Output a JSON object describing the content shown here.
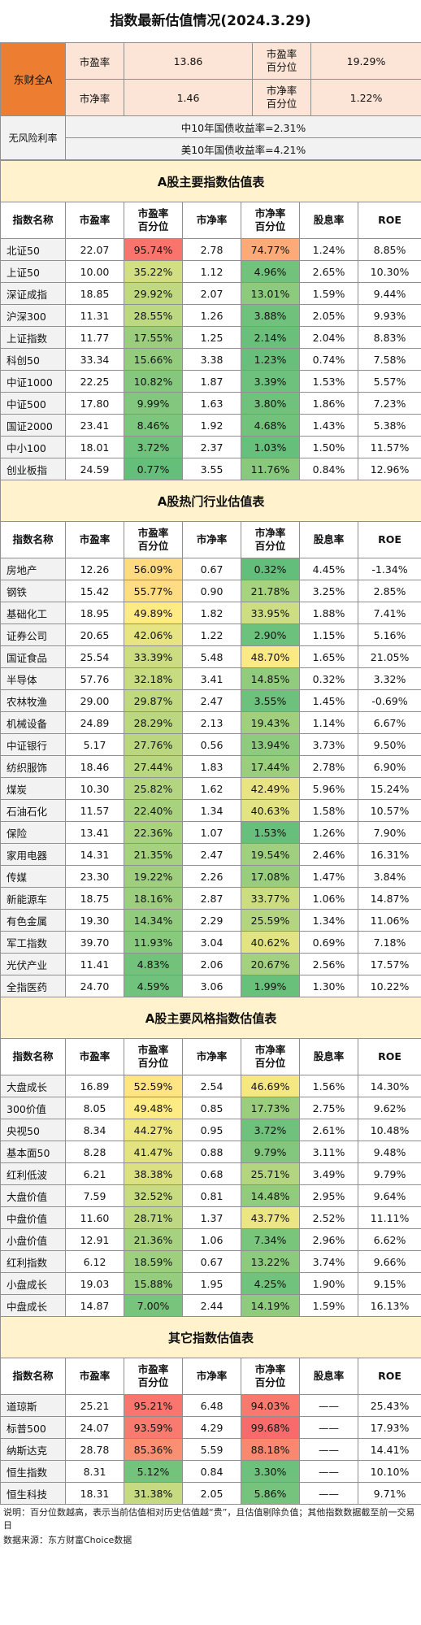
{
  "title": "指数最新估值情况(2024.3.29)",
  "summary": {
    "market": "东财全A",
    "pe_label": "市盈率",
    "pe_value": "13.86",
    "pe_pct_label": [
      "市盈率",
      "百分位"
    ],
    "pe_pct_value": "19.29%",
    "pb_label": "市净率",
    "pb_value": "1.46",
    "pb_pct_label": [
      "市净率",
      "百分位"
    ],
    "pb_pct_value": "1.22%",
    "rf_label": "无风险利率",
    "rf_cn": "中10年国债收益率=2.31%",
    "rf_us": "美10年国债收益率=4.21%"
  },
  "columns": {
    "name": "指数名称",
    "pe": "市盈率",
    "pe_pct": [
      "市盈率",
      "百分位"
    ],
    "pb": "市净率",
    "pb_pct": [
      "市净率",
      "百分位"
    ],
    "div": "股息率",
    "roe": "ROE"
  },
  "sections": [
    {
      "title": "A股主要指数估值表",
      "rows": [
        {
          "name": "北证50",
          "pe": "22.07",
          "pe_pct": "95.74%",
          "pb": "2.78",
          "pb_pct": "74.77%",
          "div": "1.24%",
          "roe": "8.85%"
        },
        {
          "name": "上证50",
          "pe": "10.00",
          "pe_pct": "35.22%",
          "pb": "1.12",
          "pb_pct": "4.96%",
          "div": "2.65%",
          "roe": "10.30%"
        },
        {
          "name": "深证成指",
          "pe": "18.85",
          "pe_pct": "29.92%",
          "pb": "2.07",
          "pb_pct": "13.01%",
          "div": "1.59%",
          "roe": "9.44%"
        },
        {
          "name": "沪深300",
          "pe": "11.31",
          "pe_pct": "28.55%",
          "pb": "1.26",
          "pb_pct": "3.88%",
          "div": "2.05%",
          "roe": "9.93%"
        },
        {
          "name": "上证指数",
          "pe": "11.77",
          "pe_pct": "17.55%",
          "pb": "1.25",
          "pb_pct": "2.14%",
          "div": "2.04%",
          "roe": "8.83%"
        },
        {
          "name": "科创50",
          "pe": "33.34",
          "pe_pct": "15.66%",
          "pb": "3.38",
          "pb_pct": "1.23%",
          "div": "0.74%",
          "roe": "7.58%"
        },
        {
          "name": "中证1000",
          "pe": "22.25",
          "pe_pct": "10.82%",
          "pb": "1.87",
          "pb_pct": "3.39%",
          "div": "1.53%",
          "roe": "5.57%"
        },
        {
          "name": "中证500",
          "pe": "17.80",
          "pe_pct": "9.99%",
          "pb": "1.63",
          "pb_pct": "3.80%",
          "div": "1.86%",
          "roe": "7.23%"
        },
        {
          "name": "国证2000",
          "pe": "23.41",
          "pe_pct": "8.46%",
          "pb": "1.92",
          "pb_pct": "4.68%",
          "div": "1.43%",
          "roe": "5.38%"
        },
        {
          "name": "中小100",
          "pe": "18.01",
          "pe_pct": "3.72%",
          "pb": "2.37",
          "pb_pct": "1.03%",
          "div": "1.50%",
          "roe": "11.57%"
        },
        {
          "name": "创业板指",
          "pe": "24.59",
          "pe_pct": "0.77%",
          "pb": "3.55",
          "pb_pct": "11.76%",
          "div": "0.84%",
          "roe": "12.96%"
        }
      ]
    },
    {
      "title": "A股热门行业估值表",
      "rows": [
        {
          "name": "房地产",
          "pe": "12.26",
          "pe_pct": "56.09%",
          "pb": "0.67",
          "pb_pct": "0.32%",
          "div": "4.45%",
          "roe": "-1.34%"
        },
        {
          "name": "钢铁",
          "pe": "15.42",
          "pe_pct": "55.77%",
          "pb": "0.90",
          "pb_pct": "21.78%",
          "div": "3.25%",
          "roe": "2.85%"
        },
        {
          "name": "基础化工",
          "pe": "18.95",
          "pe_pct": "49.89%",
          "pb": "1.82",
          "pb_pct": "33.95%",
          "div": "1.88%",
          "roe": "7.41%"
        },
        {
          "name": "证券公司",
          "pe": "20.65",
          "pe_pct": "42.06%",
          "pb": "1.22",
          "pb_pct": "2.90%",
          "div": "1.15%",
          "roe": "5.16%"
        },
        {
          "name": "国证食品",
          "pe": "25.54",
          "pe_pct": "33.39%",
          "pb": "5.48",
          "pb_pct": "48.70%",
          "div": "1.65%",
          "roe": "21.05%"
        },
        {
          "name": "半导体",
          "pe": "57.76",
          "pe_pct": "32.18%",
          "pb": "3.41",
          "pb_pct": "14.85%",
          "div": "0.32%",
          "roe": "3.32%"
        },
        {
          "name": "农林牧渔",
          "pe": "29.00",
          "pe_pct": "29.87%",
          "pb": "2.47",
          "pb_pct": "3.55%",
          "div": "1.45%",
          "roe": "-0.69%"
        },
        {
          "name": "机械设备",
          "pe": "24.89",
          "pe_pct": "28.29%",
          "pb": "2.13",
          "pb_pct": "19.43%",
          "div": "1.14%",
          "roe": "6.67%"
        },
        {
          "name": "中证银行",
          "pe": "5.17",
          "pe_pct": "27.76%",
          "pb": "0.56",
          "pb_pct": "13.94%",
          "div": "3.73%",
          "roe": "9.50%"
        },
        {
          "name": "纺织服饰",
          "pe": "18.46",
          "pe_pct": "27.44%",
          "pb": "1.83",
          "pb_pct": "17.44%",
          "div": "2.78%",
          "roe": "6.90%"
        },
        {
          "name": "煤炭",
          "pe": "10.30",
          "pe_pct": "25.82%",
          "pb": "1.62",
          "pb_pct": "42.49%",
          "div": "5.96%",
          "roe": "15.24%"
        },
        {
          "name": "石油石化",
          "pe": "11.57",
          "pe_pct": "22.40%",
          "pb": "1.34",
          "pb_pct": "40.63%",
          "div": "1.58%",
          "roe": "10.57%"
        },
        {
          "name": "保险",
          "pe": "13.41",
          "pe_pct": "22.36%",
          "pb": "1.07",
          "pb_pct": "1.53%",
          "div": "1.26%",
          "roe": "7.90%"
        },
        {
          "name": "家用电器",
          "pe": "14.31",
          "pe_pct": "21.35%",
          "pb": "2.47",
          "pb_pct": "19.54%",
          "div": "2.46%",
          "roe": "16.31%"
        },
        {
          "name": "传媒",
          "pe": "23.30",
          "pe_pct": "19.22%",
          "pb": "2.26",
          "pb_pct": "17.08%",
          "div": "1.47%",
          "roe": "3.84%"
        },
        {
          "name": "新能源车",
          "pe": "18.75",
          "pe_pct": "18.16%",
          "pb": "2.87",
          "pb_pct": "33.77%",
          "div": "1.06%",
          "roe": "14.87%"
        },
        {
          "name": "有色金属",
          "pe": "19.30",
          "pe_pct": "14.34%",
          "pb": "2.29",
          "pb_pct": "25.59%",
          "div": "1.34%",
          "roe": "11.06%"
        },
        {
          "name": "军工指数",
          "pe": "39.70",
          "pe_pct": "11.93%",
          "pb": "3.04",
          "pb_pct": "40.62%",
          "div": "0.69%",
          "roe": "7.18%"
        },
        {
          "name": "光伏产业",
          "pe": "11.41",
          "pe_pct": "4.83%",
          "pb": "2.06",
          "pb_pct": "20.67%",
          "div": "2.56%",
          "roe": "17.57%"
        },
        {
          "name": "全指医药",
          "pe": "24.70",
          "pe_pct": "4.59%",
          "pb": "3.06",
          "pb_pct": "1.99%",
          "div": "1.30%",
          "roe": "10.22%"
        }
      ]
    },
    {
      "title": "A股主要风格指数估值表",
      "rows": [
        {
          "name": "大盘成长",
          "pe": "16.89",
          "pe_pct": "52.59%",
          "pb": "2.54",
          "pb_pct": "46.69%",
          "div": "1.56%",
          "roe": "14.30%"
        },
        {
          "name": "300价值",
          "pe": "8.05",
          "pe_pct": "49.48%",
          "pb": "0.85",
          "pb_pct": "17.73%",
          "div": "2.75%",
          "roe": "9.62%"
        },
        {
          "name": "央视50",
          "pe": "8.34",
          "pe_pct": "44.27%",
          "pb": "0.95",
          "pb_pct": "3.72%",
          "div": "2.61%",
          "roe": "10.48%"
        },
        {
          "name": "基本面50",
          "pe": "8.28",
          "pe_pct": "41.47%",
          "pb": "0.88",
          "pb_pct": "9.79%",
          "div": "3.11%",
          "roe": "9.48%"
        },
        {
          "name": "红利低波",
          "pe": "6.21",
          "pe_pct": "38.38%",
          "pb": "0.68",
          "pb_pct": "25.71%",
          "div": "3.49%",
          "roe": "9.79%"
        },
        {
          "name": "大盘价值",
          "pe": "7.59",
          "pe_pct": "32.52%",
          "pb": "0.81",
          "pb_pct": "14.48%",
          "div": "2.95%",
          "roe": "9.64%"
        },
        {
          "name": "中盘价值",
          "pe": "11.60",
          "pe_pct": "28.71%",
          "pb": "1.37",
          "pb_pct": "43.77%",
          "div": "2.52%",
          "roe": "11.11%"
        },
        {
          "name": "小盘价值",
          "pe": "12.91",
          "pe_pct": "21.36%",
          "pb": "1.06",
          "pb_pct": "7.34%",
          "div": "2.96%",
          "roe": "6.62%"
        },
        {
          "name": "红利指数",
          "pe": "6.12",
          "pe_pct": "18.59%",
          "pb": "0.67",
          "pb_pct": "13.22%",
          "div": "3.74%",
          "roe": "9.66%"
        },
        {
          "name": "小盘成长",
          "pe": "19.03",
          "pe_pct": "15.88%",
          "pb": "1.95",
          "pb_pct": "4.25%",
          "div": "1.90%",
          "roe": "9.15%"
        },
        {
          "name": "中盘成长",
          "pe": "14.87",
          "pe_pct": "7.00%",
          "pb": "2.44",
          "pb_pct": "14.19%",
          "div": "1.59%",
          "roe": "16.13%"
        }
      ]
    },
    {
      "title": "其它指数估值表",
      "rows": [
        {
          "name": "道琼斯",
          "pe": "25.21",
          "pe_pct": "95.21%",
          "pb": "6.48",
          "pb_pct": "94.03%",
          "div": "——",
          "roe": "25.43%"
        },
        {
          "name": "标普500",
          "pe": "24.07",
          "pe_pct": "93.59%",
          "pb": "4.29",
          "pb_pct": "99.68%",
          "div": "——",
          "roe": "17.93%"
        },
        {
          "name": "纳斯达克",
          "pe": "28.78",
          "pe_pct": "85.36%",
          "pb": "5.59",
          "pb_pct": "88.18%",
          "div": "——",
          "roe": "14.41%"
        },
        {
          "name": "恒生指数",
          "pe": "8.31",
          "pe_pct": "5.12%",
          "pb": "0.84",
          "pb_pct": "3.30%",
          "div": "——",
          "roe": "10.10%"
        },
        {
          "name": "恒生科技",
          "pe": "18.31",
          "pe_pct": "31.38%",
          "pb": "2.05",
          "pb_pct": "5.86%",
          "div": "——",
          "roe": "9.71%"
        }
      ]
    }
  ],
  "footer": {
    "note": "说明：百分位数越高，表示当前估值相对历史估值越“贵”，且估值剔除负值；其他指数数据截至前一交易日",
    "source": "数据来源：东方财富Choice数据"
  }
}
